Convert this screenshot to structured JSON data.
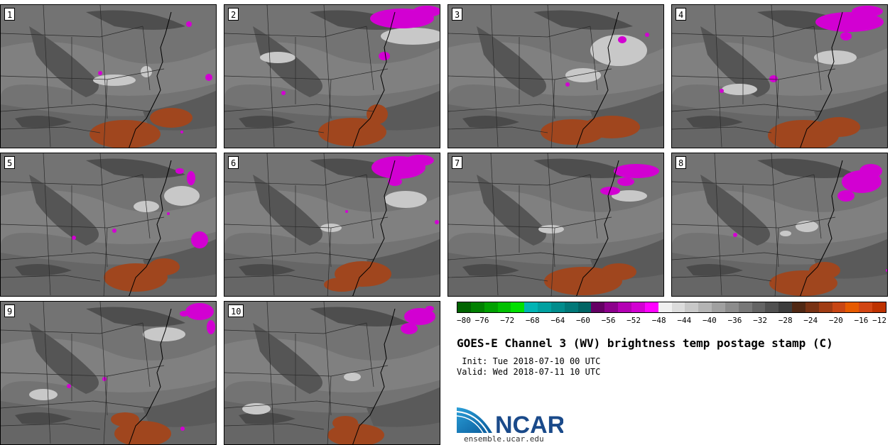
{
  "panels": [
    {
      "label": "1",
      "magenta": [
        [
          265,
          33,
          4
        ],
        [
          140,
          102,
          3
        ],
        [
          293,
          108,
          5
        ],
        [
          255,
          185,
          2
        ]
      ],
      "brown": [
        [
          175,
          188,
          50,
          20
        ],
        [
          240,
          165,
          30,
          14
        ]
      ],
      "light": [
        [
          160,
          112,
          30,
          8
        ],
        [
          205,
          100,
          8,
          8
        ]
      ]
    },
    {
      "label": "2",
      "magenta": [
        [
          565,
          25,
          45,
          14
        ],
        [
          600,
          15,
          20,
          8
        ],
        [
          540,
          78,
          8,
          6
        ],
        [
          398,
          130,
          3
        ]
      ],
      "brown": [
        [
          495,
          185,
          48,
          20
        ],
        [
          530,
          160,
          15,
          14
        ]
      ],
      "light": [
        [
          580,
          50,
          45,
          12
        ],
        [
          390,
          80,
          25,
          8
        ]
      ]
    },
    {
      "label": "3",
      "magenta": [
        [
          875,
          55,
          6,
          5
        ],
        [
          910,
          48,
          3
        ],
        [
          798,
          118,
          3
        ]
      ],
      "brown": [
        [
          805,
          185,
          45,
          18
        ],
        [
          860,
          178,
          40,
          16
        ]
      ],
      "light": [
        [
          870,
          70,
          40,
          22
        ],
        [
          820,
          105,
          25,
          10
        ]
      ]
    },
    {
      "label": "4",
      "magenta": [
        [
          1195,
          30,
          48,
          14
        ],
        [
          1220,
          15,
          22,
          8
        ],
        [
          1190,
          50,
          8,
          6
        ],
        [
          1088,
          110,
          6,
          5
        ],
        [
          1015,
          127,
          3
        ]
      ],
      "brown": [
        [
          1130,
          190,
          50,
          22
        ],
        [
          1180,
          178,
          30,
          14
        ]
      ],
      "light": [
        [
          1175,
          80,
          30,
          10
        ],
        [
          1040,
          125,
          25,
          8
        ]
      ]
    },
    {
      "label": "5",
      "magenta": [
        [
          252,
          240,
          6,
          4
        ],
        [
          268,
          250,
          6,
          10
        ],
        [
          280,
          337,
          12,
          12
        ],
        [
          160,
          324,
          3
        ],
        [
          103,
          334,
          3
        ],
        [
          236,
          300,
          2
        ]
      ],
      "brown": [
        [
          190,
          390,
          45,
          20
        ],
        [
          230,
          375,
          22,
          12
        ]
      ],
      "light": [
        [
          255,
          275,
          25,
          14
        ],
        [
          205,
          290,
          18,
          8
        ]
      ]
    },
    {
      "label": "6",
      "magenta": [
        [
          560,
          235,
          38,
          16
        ],
        [
          590,
          225,
          20,
          8
        ],
        [
          555,
          255,
          10,
          6
        ],
        [
          614,
          312,
          3
        ],
        [
          487,
          297,
          2
        ]
      ],
      "brown": [
        [
          510,
          385,
          40,
          18
        ],
        [
          480,
          400,
          25,
          10
        ]
      ],
      "light": [
        [
          570,
          280,
          30,
          12
        ],
        [
          465,
          320,
          15,
          6
        ]
      ]
    },
    {
      "label": "7",
      "magenta": [
        [
          895,
          240,
          32,
          10
        ],
        [
          858,
          268,
          14,
          6
        ],
        [
          880,
          255,
          12,
          6
        ]
      ],
      "brown": [
        [
          820,
          395,
          55,
          20
        ],
        [
          870,
          382,
          25,
          12
        ]
      ],
      "light": [
        [
          885,
          275,
          25,
          8
        ],
        [
          775,
          322,
          18,
          6
        ]
      ]
    },
    {
      "label": "8",
      "magenta": [
        [
          1212,
          255,
          28,
          16
        ],
        [
          1190,
          275,
          12,
          8
        ],
        [
          1225,
          240,
          16,
          10
        ],
        [
          1034,
          330,
          3
        ],
        [
          1248,
          380,
          2
        ]
      ],
      "brown": [
        [
          1130,
          398,
          48,
          18
        ],
        [
          1160,
          380,
          22,
          12
        ]
      ],
      "light": [
        [
          1135,
          318,
          16,
          8
        ],
        [
          1105,
          328,
          8,
          4
        ]
      ]
    },
    {
      "label": "9",
      "magenta": [
        [
          280,
          438,
          20,
          12
        ],
        [
          296,
          460,
          6,
          10
        ],
        [
          258,
          441,
          6,
          4
        ],
        [
          96,
          543,
          3
        ],
        [
          146,
          533,
          3
        ],
        [
          256,
          603,
          3
        ]
      ],
      "brown": [
        [
          200,
          610,
          40,
          18
        ],
        [
          175,
          590,
          20,
          10
        ]
      ],
      "light": [
        [
          230,
          470,
          30,
          10
        ],
        [
          60,
          555,
          20,
          8
        ]
      ]
    },
    {
      "label": "10",
      "magenta": [
        [
          590,
          445,
          22,
          12
        ],
        [
          575,
          462,
          12,
          8
        ],
        [
          604,
          434,
          6,
          4
        ]
      ],
      "brown": [
        [
          500,
          612,
          40,
          16
        ],
        [
          485,
          595,
          18,
          10
        ]
      ],
      "light": [
        [
          495,
          530,
          12,
          6
        ],
        [
          360,
          575,
          20,
          8
        ]
      ]
    }
  ],
  "colorbar": {
    "colors": [
      "#006400",
      "#008000",
      "#00a000",
      "#00c000",
      "#00e000",
      "#00b4b4",
      "#00a0a0",
      "#008c8c",
      "#007878",
      "#006464",
      "#640064",
      "#8c008c",
      "#b400b4",
      "#d200d2",
      "#ff00ff",
      "#f0f0f0",
      "#dcdcdc",
      "#c8c8c8",
      "#b4b4b4",
      "#a0a0a0",
      "#8c8c8c",
      "#787878",
      "#646464",
      "#505050",
      "#3c3c3c",
      "#502814",
      "#783214",
      "#a03c14",
      "#c84614",
      "#e65a00",
      "#d24614",
      "#be3200"
    ],
    "ticks": [
      "−80",
      "−76",
      "−72",
      "−68",
      "−64",
      "−60",
      "−56",
      "−52",
      "−48",
      "−44",
      "−40",
      "−36",
      "−32",
      "−28",
      "−24",
      "−20",
      "−16",
      "−12"
    ]
  },
  "title": "GOES-E Channel 3 (WV) brightness temp postage stamp (C)",
  "init": " Init: Tue 2018-07-10 00 UTC",
  "valid": "Valid: Wed 2018-07-11 10 UTC",
  "logo_text": "NCAR",
  "url": "ensemble.ucar.edu"
}
